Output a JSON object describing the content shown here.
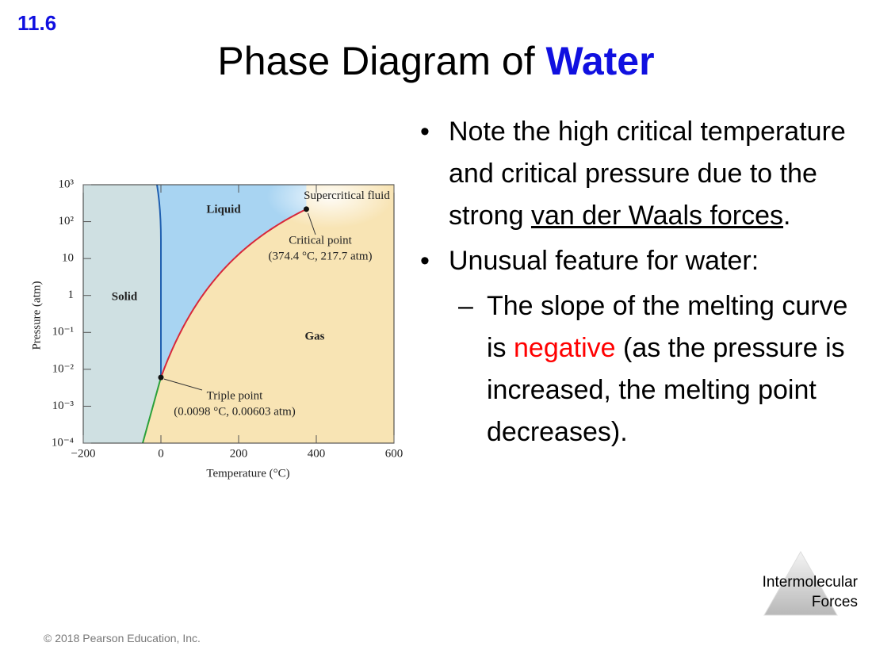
{
  "header": {
    "section": "11.6",
    "title": "Phase Diagram of ",
    "title_highlight": "Water"
  },
  "diagram": {
    "x_label": "Temperature (°C)",
    "y_label": "Pressure (atm)",
    "xlim": [
      -200,
      600
    ],
    "xticks": [
      {
        "value": -200,
        "label": "−200"
      },
      0,
      200,
      400,
      600
    ],
    "ylim": [
      0.0001,
      1000
    ],
    "log_y": true,
    "yticks": [
      {
        "value": 1000,
        "label": "10³"
      },
      {
        "value": 100,
        "label": "10²"
      },
      10,
      1,
      {
        "value": 0.1,
        "label": "10⁻¹"
      },
      {
        "value": 0.01,
        "label": "10⁻²"
      },
      {
        "value": 0.001,
        "label": "10⁻³"
      },
      {
        "value": 0.0001,
        "label": "10⁻⁴"
      }
    ],
    "regions": {
      "solid": "Solid",
      "liquid": "Liquid",
      "gas": "Gas",
      "supercritical": "Supercritical fluid"
    },
    "critical_point": {
      "label": "Critical point",
      "detail": "(374.4 °C, 217.7 atm)",
      "x": 374.4,
      "y": 217.7
    },
    "triple_point": {
      "label": "Triple point",
      "detail": "(0.0098 °C, 0.00603 atm)",
      "x": 0.0098,
      "y": 0.00603
    }
  },
  "bullets": [
    {
      "parts": [
        {
          "text": "Note the high critical temperature and critical pressure due to the strong "
        },
        {
          "text": "van der Waals forces",
          "style": "underline"
        },
        {
          "text": "."
        }
      ]
    },
    {
      "parts": [
        {
          "text": "Unusual feature for water:"
        }
      ],
      "sub": [
        {
          "parts": [
            {
              "text": "The slope of the melting curve is "
            },
            {
              "text": "negative",
              "color": "#ff0000"
            },
            {
              "text": " (as the pressure is increased, the melting point decreases)."
            }
          ]
        }
      ]
    }
  ],
  "tab": "Intermolecular Forces",
  "footer": "© 2018 Pearson Education, Inc."
}
